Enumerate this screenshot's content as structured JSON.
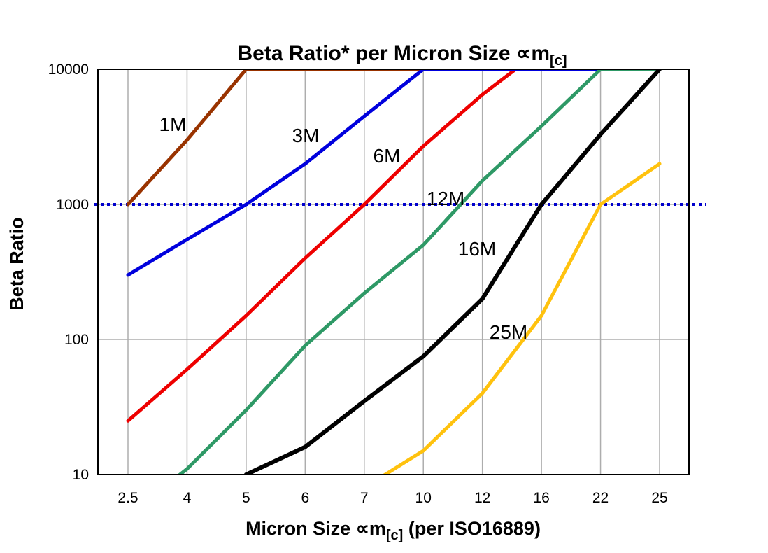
{
  "chart_data": {
    "type": "line",
    "title": "Beta Ratio* per Micron Size ∝m[c]",
    "title_parts": {
      "main": "Beta Ratio* per Micron Size ",
      "sym": "∝m",
      "sub": "[c]"
    },
    "xlabel": "Micron Size ∝m[c] (per ISO16889)",
    "xlabel_parts": {
      "main": "Micron Size ",
      "sym": "∝m",
      "sub": "[c]",
      "tail": " (per ISO16889)"
    },
    "ylabel": "Beta Ratio",
    "x_categories": [
      "2.5",
      "4",
      "5",
      "6",
      "7",
      "10",
      "12",
      "16",
      "22",
      "25"
    ],
    "y_scale": "log",
    "y_ticks": [
      "10",
      "100",
      "1000",
      "10000"
    ],
    "y_tick_values": [
      10,
      100,
      1000,
      10000
    ],
    "ylim": [
      10,
      10000
    ],
    "clip_to_plot": true,
    "grid": "both",
    "gridline_color": "#ADADAD",
    "frame_color": "#000000",
    "background_color": "#FFFFFF",
    "reference_line": {
      "value": 1000,
      "style": "dotted",
      "color": "#0000CC"
    },
    "series": [
      {
        "name": "1M",
        "color": "#993300",
        "label_color": "#A87C4F",
        "values": [
          1000,
          3000,
          10000,
          10000,
          10000,
          10000,
          null,
          null,
          null,
          null
        ]
      },
      {
        "name": "3M",
        "color": "#0000DD",
        "label_color": "#0000DD",
        "values": [
          300,
          550,
          1000,
          2000,
          4500,
          10000,
          10000,
          10000,
          10000,
          null
        ]
      },
      {
        "name": "6M",
        "color": "#EE0000",
        "label_color": "#EE0000",
        "values": [
          25,
          60,
          150,
          400,
          1000,
          2700,
          6500,
          14000,
          null,
          null
        ]
      },
      {
        "name": "12M",
        "color": "#2E9966",
        "label_color": "#00A33C",
        "values": [
          5,
          11,
          30,
          90,
          220,
          500,
          1500,
          3800,
          10000,
          10000
        ]
      },
      {
        "name": "16M",
        "color": "#000000",
        "label_color": "#000000",
        "values": [
          null,
          null,
          10,
          16,
          35,
          75,
          200,
          1000,
          3300,
          10000
        ]
      },
      {
        "name": "25M",
        "color": "#FFC20E",
        "label_color": "#FFC20E",
        "values": [
          null,
          null,
          null,
          null,
          8,
          15,
          40,
          150,
          1000,
          2000
        ]
      }
    ],
    "legend_position": "inline-labels"
  }
}
